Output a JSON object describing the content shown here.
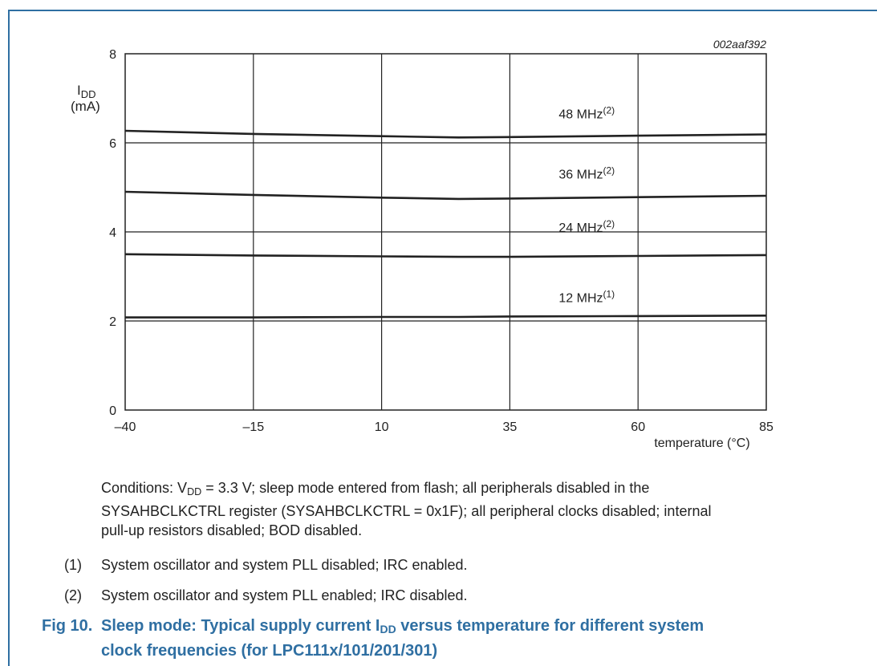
{
  "chart_data": {
    "type": "line",
    "ref_id": "002aaf392",
    "ylabel_sym": "I",
    "ylabel_sub": "DD",
    "ylabel_unit": "(mA)",
    "xlabel": "temperature (°C)",
    "xlim": [
      -40,
      85
    ],
    "ylim": [
      0,
      8
    ],
    "x_ticks": [
      "–40",
      "–15",
      "10",
      "35",
      "60",
      "85"
    ],
    "x_tick_values": [
      -40,
      -15,
      10,
      35,
      60,
      85
    ],
    "y_ticks": [
      "0",
      "2",
      "4",
      "6",
      "8"
    ],
    "y_tick_values": [
      0,
      2,
      4,
      6,
      8
    ],
    "grid": true,
    "x": [
      -40,
      -15,
      10,
      25,
      35,
      60,
      85
    ],
    "series": [
      {
        "name": "48 MHz",
        "note": "(2)",
        "values": [
          6.27,
          6.2,
          6.15,
          6.12,
          6.13,
          6.16,
          6.19
        ],
        "label_x": 50,
        "label_y": 6.55
      },
      {
        "name": "36 MHz",
        "note": "(2)",
        "values": [
          4.9,
          4.83,
          4.77,
          4.74,
          4.75,
          4.78,
          4.81
        ],
        "label_x": 50,
        "label_y": 5.2
      },
      {
        "name": "24 MHz",
        "note": "(2)",
        "values": [
          3.5,
          3.47,
          3.45,
          3.44,
          3.44,
          3.46,
          3.48
        ],
        "label_x": 50,
        "label_y": 4.0
      },
      {
        "name": "12 MHz",
        "note": "(1)",
        "values": [
          2.08,
          2.08,
          2.09,
          2.09,
          2.1,
          2.11,
          2.12
        ],
        "label_x": 50,
        "label_y": 2.42
      }
    ]
  },
  "conditions": {
    "prefix": "Conditions: V",
    "sub": "DD",
    "rest1": " = 3.3 V; sleep mode entered from flash; all peripherals disabled in the",
    "line2": "SYSAHBCLKCTRL register (SYSAHBCLKCTRL = 0x1F); all peripheral clocks disabled; internal",
    "line3": "pull-up resistors disabled; BOD disabled."
  },
  "notes": [
    {
      "num": "(1)",
      "text": "System oscillator and system PLL disabled; IRC enabled."
    },
    {
      "num": "(2)",
      "text": "System oscillator and system PLL enabled; IRC disabled."
    }
  ],
  "caption": {
    "label": "Fig 10.",
    "text1": "Sleep mode: Typical supply current I",
    "text_sub": "DD",
    "text2": " versus temperature for different system",
    "line2": "clock frequencies (for LPC111x/101/201/301)"
  },
  "colors": {
    "frame": "#2f6fa2",
    "caption": "#2f6fa2",
    "ink": "#222222"
  }
}
